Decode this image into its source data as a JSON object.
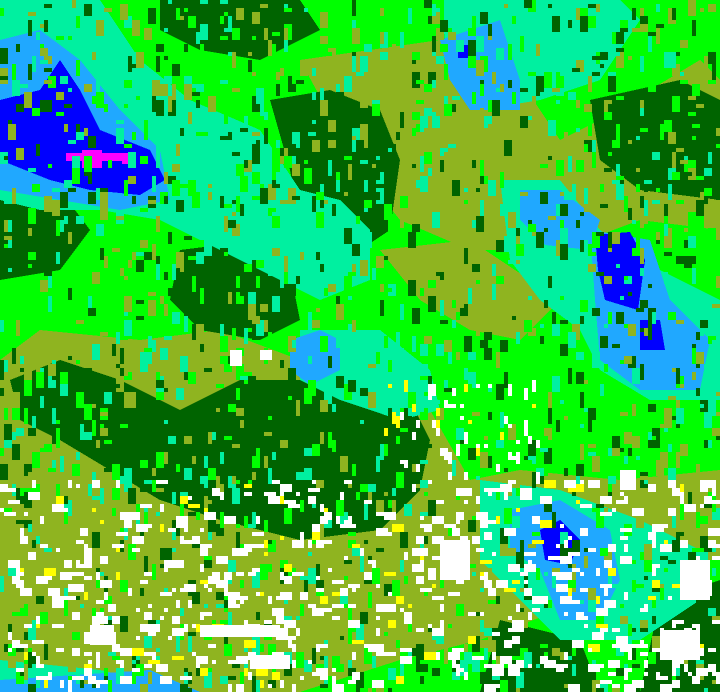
{
  "palette": {
    "bright_green": "#00ff00",
    "dark_green": "#006400",
    "olive": "#8fb420",
    "aqua": "#00f0a0",
    "light_blue": "#20a8ff",
    "blue": "#0000ff",
    "magenta": "#ff00ff",
    "white": "#ffffff",
    "yellow": "#ffff00"
  }
}
